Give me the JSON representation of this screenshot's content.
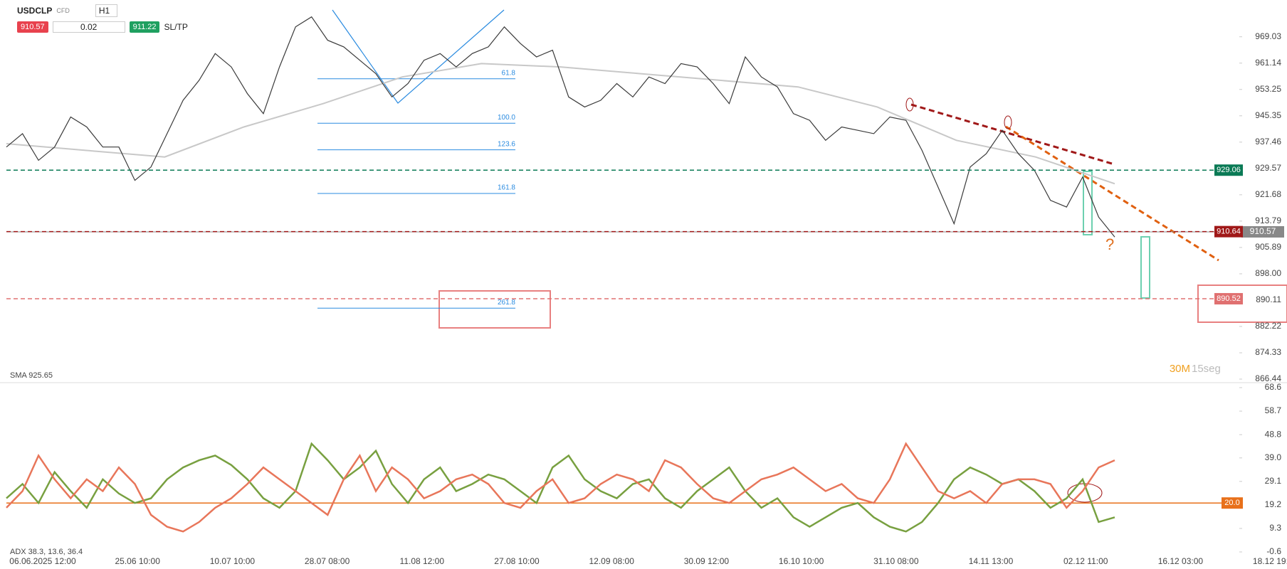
{
  "toolbar": {
    "symbol": "USDCLP",
    "market": "CFD",
    "timeframe": "H1",
    "sell_price": 910.57,
    "lot": 0.02,
    "buy_price": 911.22,
    "sl_tp": "SL/TP"
  },
  "chart_data": [
    {
      "type": "line",
      "color": "#3a3a3a",
      "values": [
        936,
        940,
        932,
        936,
        945,
        942,
        936,
        936,
        926,
        930,
        940,
        950,
        956,
        964,
        960,
        952,
        946,
        960,
        972,
        975,
        968,
        966,
        962,
        958,
        951,
        955,
        962,
        964,
        960,
        964,
        966,
        972,
        967,
        963,
        965,
        951,
        948,
        950,
        955,
        951,
        957,
        955,
        961,
        960,
        955,
        949,
        963,
        957,
        954,
        946,
        944,
        938,
        942,
        941,
        940,
        945,
        944,
        935,
        924,
        913,
        930,
        934,
        941,
        934,
        929,
        920,
        918,
        927,
        915,
        909
      ],
      "series": [
        {
          "name": "SMA 925.65",
          "color": "#c8c8c8",
          "values": [
            937,
            935,
            933,
            942,
            949,
            957,
            961,
            960,
            958,
            956,
            954,
            948,
            938,
            933,
            925
          ]
        }
      ],
      "x_labels": [
        "06.06.2025 12:00",
        "25.06 10:00",
        "10.07 10:00",
        "28.07 08:00",
        "11.08 12:00",
        "27.08 10:00",
        "12.09 08:00",
        "30.09 12:00",
        "16.10 10:00",
        "31.10 08:00",
        "14.11 13:00",
        "02.12 11:00",
        "16.12 03:00",
        "18.12 19:00"
      ],
      "ylim": [
        866.44,
        978.35
      ],
      "yticks": [
        969.03,
        961.14,
        953.25,
        945.35,
        937.46,
        929.57,
        921.68,
        913.79,
        905.89,
        {
          "value": 898,
          "label": "898.00"
        },
        890.11,
        882.22,
        874.33,
        866.44
      ],
      "last_price": 910.57,
      "levels": [
        {
          "value": 929.06,
          "color": "#0a7a55"
        },
        {
          "value": 910.64,
          "color": "#a01818"
        },
        {
          "value": 890.52,
          "color": "#e07070"
        }
      ],
      "fib_levels": [
        {
          "label": "61.8",
          "price": 956.45
        },
        {
          "label": "100.0",
          "price": 943.13
        },
        {
          "label": "123.6",
          "price": 935.15
        },
        {
          "label": "161.8",
          "price": 922.08
        },
        {
          "label": "261.8",
          "price": 887.7
        }
      ]
    },
    {
      "type": "line",
      "title": "ADX 38.3, 13.6, 36.4",
      "series": [
        {
          "color": "#78a040",
          "values": [
            22,
            28,
            20,
            33,
            25,
            18,
            30,
            24,
            20,
            22,
            30,
            35,
            38,
            40,
            36,
            30,
            22,
            18,
            25,
            45,
            38,
            30,
            35,
            42,
            28,
            20,
            30,
            35,
            25,
            28,
            32,
            30,
            25,
            20,
            35,
            40,
            30,
            25,
            22,
            28,
            30,
            22,
            18,
            25,
            30,
            35,
            25,
            18,
            22,
            14,
            10,
            14,
            18,
            20,
            14,
            10,
            8,
            12,
            20,
            30,
            35,
            32,
            28,
            30,
            25,
            18,
            22,
            30,
            12,
            14
          ]
        },
        {
          "color": "#e8765a",
          "values": [
            18,
            25,
            40,
            30,
            22,
            30,
            25,
            35,
            28,
            15,
            10,
            8,
            12,
            18,
            22,
            28,
            35,
            30,
            25,
            20,
            15,
            30,
            40,
            25,
            35,
            30,
            22,
            25,
            30,
            32,
            28,
            20,
            18,
            25,
            30,
            20,
            22,
            28,
            32,
            30,
            25,
            38,
            35,
            28,
            22,
            20,
            25,
            30,
            32,
            35,
            30,
            25,
            28,
            22,
            20,
            30,
            45,
            35,
            25,
            22,
            25,
            20,
            28,
            30,
            30,
            28,
            18,
            25,
            35,
            38
          ]
        }
      ],
      "ylim": [
        -0.6,
        68.6
      ],
      "yticks": [
        68.6,
        58.7,
        48.8,
        {
          "value": 39,
          "label": "39.0"
        },
        29.1,
        19.2,
        9.3,
        -0.6
      ],
      "level": {
        "value": 20,
        "label": "20.0",
        "color": "#e8701a"
      }
    }
  ],
  "timer": {
    "minutes": "30M",
    "seconds": "15seg"
  }
}
